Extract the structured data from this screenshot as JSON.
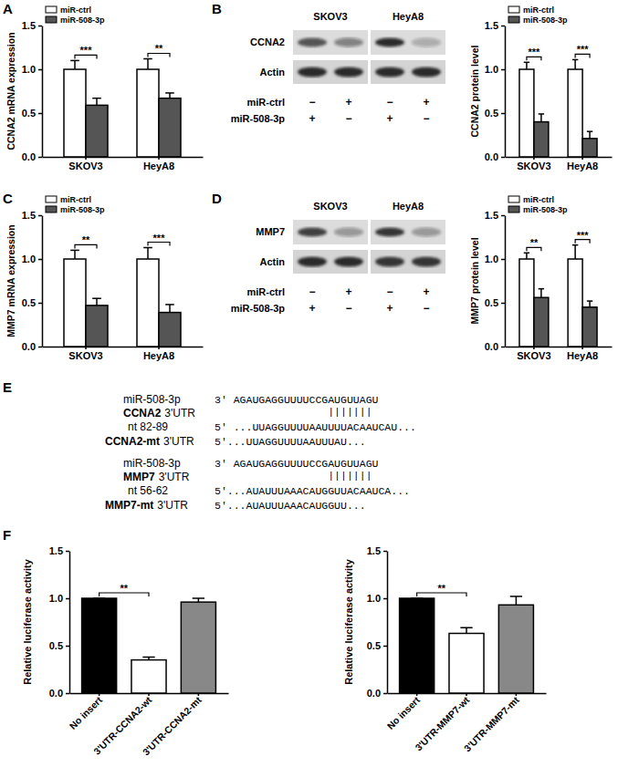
{
  "panel_labels": [
    "A",
    "B",
    "C",
    "D",
    "E",
    "F"
  ],
  "chart_data": [
    {
      "type": "bar",
      "y_label": "CCNA2 mRNA expression",
      "categories": [
        "SKOV3",
        "HeyA8"
      ],
      "series": [
        {
          "name": "miR-ctrl",
          "color": "#ffffff",
          "values": [
            1.0,
            1.0
          ],
          "errors": [
            0.1,
            0.12
          ]
        },
        {
          "name": "miR-508-3p",
          "color": "#555555",
          "values": [
            0.59,
            0.67
          ],
          "errors": [
            0.08,
            0.06
          ]
        }
      ],
      "ylim": [
        0,
        1.5
      ],
      "yticks": [
        {
          "value": 0,
          "label": "0.0"
        },
        {
          "value": 0.5,
          "label": "0.5"
        },
        {
          "value": 1,
          "label": "1.0"
        },
        {
          "value": 1.5,
          "label": "1.5"
        }
      ],
      "legend": "top-left",
      "significance": [
        "***",
        "**"
      ]
    },
    {
      "type": "bar",
      "y_label": "CCNA2 protein level",
      "categories": [
        "SKOV3",
        "HeyA8"
      ],
      "series": [
        {
          "name": "miR-ctrl",
          "color": "#ffffff",
          "values": [
            1.0,
            1.0
          ],
          "errors": [
            0.08,
            0.11
          ]
        },
        {
          "name": "miR-508-3p",
          "color": "#555555",
          "values": [
            0.4,
            0.21
          ],
          "errors": [
            0.09,
            0.08
          ]
        }
      ],
      "ylim": [
        0,
        1.5
      ],
      "yticks": [
        {
          "value": 0,
          "label": "0.0"
        },
        {
          "value": 0.5,
          "label": "0.5"
        },
        {
          "value": 1,
          "label": "1.0"
        },
        {
          "value": 1.5,
          "label": "1.5"
        }
      ],
      "legend": "top-left",
      "significance": [
        "***",
        "***"
      ]
    },
    {
      "type": "bar",
      "y_label": "MMP7 mRNA expression",
      "categories": [
        "SKOV3",
        "HeyA8"
      ],
      "series": [
        {
          "name": "miR-ctrl",
          "color": "#ffffff",
          "values": [
            1.0,
            1.0
          ],
          "errors": [
            0.1,
            0.13
          ]
        },
        {
          "name": "miR-508-3p",
          "color": "#555555",
          "values": [
            0.47,
            0.39
          ],
          "errors": [
            0.08,
            0.09
          ]
        }
      ],
      "ylim": [
        0,
        1.5
      ],
      "yticks": [
        {
          "value": 0,
          "label": "0.0"
        },
        {
          "value": 0.5,
          "label": "0.5"
        },
        {
          "value": 1,
          "label": "1.0"
        },
        {
          "value": 1.5,
          "label": "1.5"
        }
      ],
      "legend": "top-left",
      "significance": [
        "**",
        "***"
      ]
    },
    {
      "type": "bar",
      "y_label": "MMP7 protein level",
      "categories": [
        "SKOV3",
        "HeyA8"
      ],
      "series": [
        {
          "name": "miR-ctrl",
          "color": "#ffffff",
          "values": [
            1.0,
            1.0
          ],
          "errors": [
            0.07,
            0.16
          ]
        },
        {
          "name": "miR-508-3p",
          "color": "#555555",
          "values": [
            0.56,
            0.45
          ],
          "errors": [
            0.1,
            0.07
          ]
        }
      ],
      "ylim": [
        0,
        1.5
      ],
      "yticks": [
        {
          "value": 0,
          "label": "0.0"
        },
        {
          "value": 0.5,
          "label": "0.5"
        },
        {
          "value": 1,
          "label": "1.0"
        },
        {
          "value": 1.5,
          "label": "1.5"
        }
      ],
      "legend": "top-left",
      "significance": [
        "**",
        "***"
      ]
    },
    {
      "type": "bar",
      "y_label": "Relative luciferase activity",
      "categories": [
        "No insert",
        "3'UTR-CCNA2-wt",
        "3'UTR-CCNA2-mt"
      ],
      "values": [
        1.0,
        0.35,
        0.96
      ],
      "errors": [
        0,
        0.03,
        0.04
      ],
      "colors": [
        "#000000",
        "#ffffff",
        "#888888"
      ],
      "ylim": [
        0,
        1.5
      ],
      "yticks": [
        {
          "value": 0,
          "label": "0.0"
        },
        {
          "value": 0.5,
          "label": "0.5"
        },
        {
          "value": 1,
          "label": "1.0"
        },
        {
          "value": 1.5,
          "label": "1.5"
        }
      ],
      "significance": [
        {
          "text": "**",
          "between": [
            "No insert",
            "3'UTR-CCNA2-wt"
          ]
        }
      ]
    },
    {
      "type": "bar",
      "y_label": "Relative luciferase activity",
      "categories": [
        "No insert",
        "3'UTR-MMP7-wt",
        "3'UTR-MMP7-mt"
      ],
      "values": [
        1.0,
        0.63,
        0.93
      ],
      "errors": [
        0,
        0.06,
        0.09
      ],
      "colors": [
        "#000000",
        "#ffffff",
        "#888888"
      ],
      "ylim": [
        0,
        1.5
      ],
      "yticks": [
        {
          "value": 0,
          "label": "0.0"
        },
        {
          "value": 0.5,
          "label": "0.5"
        },
        {
          "value": 1,
          "label": "1.0"
        },
        {
          "value": 1.5,
          "label": "1.5"
        }
      ],
      "significance": [
        {
          "text": "**",
          "between": [
            "No insert",
            "3'UTR-MMP7-wt"
          ]
        }
      ]
    }
  ],
  "blots": [
    {
      "target": "CCNA2",
      "loading": "Actin",
      "cell_lines": [
        "SKOV3",
        "HeyA8"
      ],
      "rows": [
        {
          "label": "miR-ctrl",
          "signs": [
            "−",
            "+",
            "−",
            "+"
          ]
        },
        {
          "label": "miR-508-3p",
          "signs": [
            "+",
            "−",
            "+",
            "−"
          ]
        }
      ]
    },
    {
      "target": "MMP7",
      "loading": "Actin",
      "cell_lines": [
        "SKOV3",
        "HeyA8"
      ],
      "rows": [
        {
          "label": "miR-ctrl",
          "signs": [
            "−",
            "+",
            "−",
            "+"
          ]
        },
        {
          "label": "miR-508-3p",
          "signs": [
            "+",
            "−",
            "+",
            "−"
          ]
        }
      ]
    }
  ],
  "sequences": [
    {
      "mirna_label": "miR-508-3p",
      "mirna_seq": "3' AGAUGAGGUUUUCCGAUGUUAGU",
      "pairing": "|||||||",
      "gene": "CCNA2",
      "utr_label": "3'UTR",
      "site": "nt 82-89",
      "wt_seq": "5' ...UUAGGUUUUAAUUUUACAAUCAU...",
      "mt_gene": "CCNA2-mt",
      "mt_utr_label": "3'UTR",
      "mt_seq": "5'...UUAGGUUUUAAUUUAU..."
    },
    {
      "mirna_label": "miR-508-3p",
      "mirna_seq": "3' AGAUGAGGUUUUCCGAUGUUAGU",
      "pairing": "|||||||",
      "gene": "MMP7",
      "utr_label": "3'UTR",
      "site": "nt 56-62",
      "wt_seq": "5'...AUAUUUAAACAUGGUUACAAUCA...",
      "mt_gene": "MMP7-mt",
      "mt_utr_label": "3'UTR",
      "mt_seq": "5'...AUAUUUAAACAUGGUU..."
    }
  ]
}
